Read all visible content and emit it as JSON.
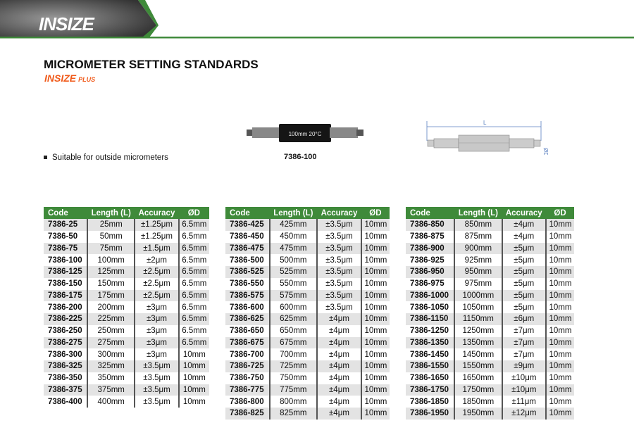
{
  "brand": {
    "logo": "INSIZE",
    "sublogo": "INSIZE",
    "sublogo_suffix": "PLUS",
    "green": "#3f8a3a",
    "orange": "#f05a1a"
  },
  "title": "MICROMETER SETTING STANDARDS",
  "feature": "Suitable for outside micrometers",
  "product": {
    "label": "100mm 20°C",
    "caption": "7386-100"
  },
  "drawing": {
    "length_label": "L",
    "diameter_label": "ØD"
  },
  "headers": [
    "Code",
    "Length (L)",
    "Accuracy",
    "ØD"
  ],
  "tables": [
    [
      [
        "7386-25",
        "25mm",
        "±1.25μm",
        "6.5mm"
      ],
      [
        "7386-50",
        "50mm",
        "±1.25μm",
        "6.5mm"
      ],
      [
        "7386-75",
        "75mm",
        "±1.5μm",
        "6.5mm"
      ],
      [
        "7386-100",
        "100mm",
        "±2μm",
        "6.5mm"
      ],
      [
        "7386-125",
        "125mm",
        "±2.5μm",
        "6.5mm"
      ],
      [
        "7386-150",
        "150mm",
        "±2.5μm",
        "6.5mm"
      ],
      [
        "7386-175",
        "175mm",
        "±2.5μm",
        "6.5mm"
      ],
      [
        "7386-200",
        "200mm",
        "±3μm",
        "6.5mm"
      ],
      [
        "7386-225",
        "225mm",
        "±3μm",
        "6.5mm"
      ],
      [
        "7386-250",
        "250mm",
        "±3μm",
        "6.5mm"
      ],
      [
        "7386-275",
        "275mm",
        "±3μm",
        "6.5mm"
      ],
      [
        "7386-300",
        "300mm",
        "±3μm",
        "10mm"
      ],
      [
        "7386-325",
        "325mm",
        "±3.5μm",
        "10mm"
      ],
      [
        "7386-350",
        "350mm",
        "±3.5μm",
        "10mm"
      ],
      [
        "7386-375",
        "375mm",
        "±3.5μm",
        "10mm"
      ],
      [
        "7386-400",
        "400mm",
        "±3.5μm",
        "10mm"
      ]
    ],
    [
      [
        "7386-425",
        "425mm",
        "±3.5μm",
        "10mm"
      ],
      [
        "7386-450",
        "450mm",
        "±3.5μm",
        "10mm"
      ],
      [
        "7386-475",
        "475mm",
        "±3.5μm",
        "10mm"
      ],
      [
        "7386-500",
        "500mm",
        "±3.5μm",
        "10mm"
      ],
      [
        "7386-525",
        "525mm",
        "±3.5μm",
        "10mm"
      ],
      [
        "7386-550",
        "550mm",
        "±3.5μm",
        "10mm"
      ],
      [
        "7386-575",
        "575mm",
        "±3.5μm",
        "10mm"
      ],
      [
        "7386-600",
        "600mm",
        "±3.5μm",
        "10mm"
      ],
      [
        "7386-625",
        "625mm",
        "±4μm",
        "10mm"
      ],
      [
        "7386-650",
        "650mm",
        "±4μm",
        "10mm"
      ],
      [
        "7386-675",
        "675mm",
        "±4μm",
        "10mm"
      ],
      [
        "7386-700",
        "700mm",
        "±4μm",
        "10mm"
      ],
      [
        "7386-725",
        "725mm",
        "±4μm",
        "10mm"
      ],
      [
        "7386-750",
        "750mm",
        "±4μm",
        "10mm"
      ],
      [
        "7386-775",
        "775mm",
        "±4μm",
        "10mm"
      ],
      [
        "7386-800",
        "800mm",
        "±4μm",
        "10mm"
      ],
      [
        "7386-825",
        "825mm",
        "±4μm",
        "10mm"
      ]
    ],
    [
      [
        "7386-850",
        "850mm",
        "±4μm",
        "10mm"
      ],
      [
        "7386-875",
        "875mm",
        "±4μm",
        "10mm"
      ],
      [
        "7386-900",
        "900mm",
        "±5μm",
        "10mm"
      ],
      [
        "7386-925",
        "925mm",
        "±5μm",
        "10mm"
      ],
      [
        "7386-950",
        "950mm",
        "±5μm",
        "10mm"
      ],
      [
        "7386-975",
        "975mm",
        "±5μm",
        "10mm"
      ],
      [
        "7386-1000",
        "1000mm",
        "±5μm",
        "10mm"
      ],
      [
        "7386-1050",
        "1050mm",
        "±5μm",
        "10mm"
      ],
      [
        "7386-1150",
        "1150mm",
        "±6μm",
        "10mm"
      ],
      [
        "7386-1250",
        "1250mm",
        "±7μm",
        "10mm"
      ],
      [
        "7386-1350",
        "1350mm",
        "±7μm",
        "10mm"
      ],
      [
        "7386-1450",
        "1450mm",
        "±7μm",
        "10mm"
      ],
      [
        "7386-1550",
        "1550mm",
        "±9μm",
        "10mm"
      ],
      [
        "7386-1650",
        "1650mm",
        "±10μm",
        "10mm"
      ],
      [
        "7386-1750",
        "1750mm",
        "±10μm",
        "10mm"
      ],
      [
        "7386-1850",
        "1850mm",
        "±11μm",
        "10mm"
      ],
      [
        "7386-1950",
        "1950mm",
        "±12μm",
        "10mm"
      ]
    ]
  ]
}
